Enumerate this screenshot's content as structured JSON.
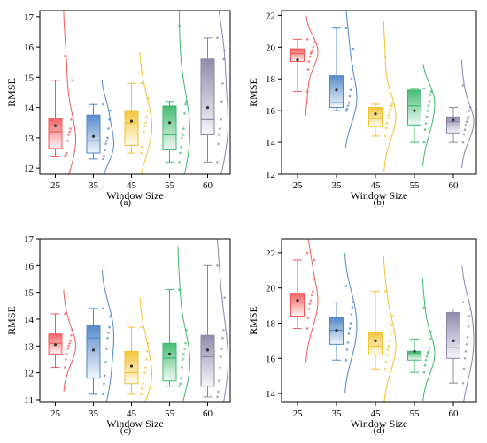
{
  "figure": {
    "colors": [
      "#f05a5a",
      "#4f86c6",
      "#f2c230",
      "#3cb86c",
      "#8c85a8"
    ]
  },
  "chart_data": [
    {
      "panel": "(a)",
      "type": "box",
      "xlabel": "Window Size",
      "ylabel": "RMSE",
      "categories": [
        "25",
        "35",
        "45",
        "55",
        "60"
      ],
      "ylim": [
        11.8,
        17.2
      ],
      "yticks": [
        12,
        13,
        14,
        15,
        16,
        17
      ],
      "boxes": [
        {
          "min": 12.4,
          "q1": 12.65,
          "median": 13.2,
          "q3": 13.65,
          "max": 14.9,
          "mean": 13.4
        },
        {
          "min": 12.3,
          "q1": 12.5,
          "median": 12.9,
          "q3": 13.75,
          "max": 14.1,
          "mean": 13.05
        },
        {
          "min": 12.5,
          "q1": 12.75,
          "median": 13.5,
          "q3": 13.9,
          "max": 14.8,
          "mean": 13.55
        },
        {
          "min": 12.2,
          "q1": 12.6,
          "median": 13.1,
          "q3": 14.05,
          "max": 14.2,
          "mean": 13.5
        },
        {
          "min": 12.2,
          "q1": 13.1,
          "median": 13.6,
          "q3": 15.6,
          "max": 16.3,
          "mean": 14.0
        }
      ],
      "points": [
        [
          12.4,
          12.45,
          12.5,
          12.9,
          13.1,
          13.2,
          13.3,
          13.6,
          14.9,
          15.7
        ],
        [
          12.3,
          12.4,
          12.6,
          12.8,
          12.9,
          13.0,
          13.3,
          13.6,
          13.9,
          14.1
        ],
        [
          12.5,
          12.7,
          12.9,
          13.2,
          13.4,
          13.5,
          13.7,
          13.9,
          14.3,
          14.8
        ],
        [
          12.2,
          12.5,
          12.7,
          13.0,
          13.1,
          13.3,
          13.8,
          14.1,
          14.2,
          16.7
        ],
        [
          12.2,
          12.8,
          13.1,
          13.3,
          13.6,
          14.2,
          14.8,
          15.6,
          15.9,
          16.3
        ]
      ]
    },
    {
      "panel": "(b)",
      "type": "box",
      "xlabel": "Window Size",
      "ylabel": "RMSE",
      "categories": [
        "25",
        "35",
        "45",
        "55",
        "60"
      ],
      "ylim": [
        12,
        22.3
      ],
      "yticks": [
        12,
        14,
        16,
        18,
        20,
        22
      ],
      "boxes": [
        {
          "min": 17.2,
          "q1": 19.1,
          "median": 19.6,
          "q3": 19.9,
          "max": 20.5,
          "mean": 19.2
        },
        {
          "min": 16.0,
          "q1": 16.2,
          "median": 16.5,
          "q3": 18.2,
          "max": 21.2,
          "mean": 17.3
        },
        {
          "min": 14.4,
          "q1": 15.0,
          "median": 15.5,
          "q3": 16.2,
          "max": 16.4,
          "mean": 15.8
        },
        {
          "min": 14.0,
          "q1": 15.1,
          "median": 16.3,
          "q3": 17.3,
          "max": 17.4,
          "mean": 16.0
        },
        {
          "min": 14.0,
          "q1": 14.6,
          "median": 15.3,
          "q3": 15.6,
          "max": 16.2,
          "mean": 15.4
        }
      ],
      "points": [
        [
          17.2,
          18.6,
          19.1,
          19.4,
          19.6,
          19.7,
          19.8,
          20.0,
          20.3,
          20.5
        ],
        [
          16.0,
          16.1,
          16.3,
          16.5,
          16.9,
          17.3,
          18.0,
          18.8,
          19.9,
          21.2
        ],
        [
          14.4,
          14.9,
          15.2,
          15.5,
          15.7,
          15.9,
          16.1,
          16.3,
          16.4,
          19.4
        ],
        [
          14.0,
          14.8,
          15.2,
          15.6,
          16.0,
          16.3,
          16.6,
          17.0,
          17.2,
          17.4
        ],
        [
          14.0,
          14.5,
          14.8,
          15.1,
          15.3,
          15.5,
          15.6,
          16.0,
          16.2,
          17.6
        ]
      ]
    },
    {
      "panel": "(c)",
      "type": "box",
      "xlabel": "Window Size",
      "ylabel": "RMSE",
      "categories": [
        "25",
        "35",
        "45",
        "55",
        "60"
      ],
      "ylim": [
        10.9,
        17.0
      ],
      "yticks": [
        11,
        12,
        13,
        14,
        15,
        16,
        17
      ],
      "boxes": [
        {
          "min": 12.2,
          "q1": 12.7,
          "median": 13.1,
          "q3": 13.45,
          "max": 14.2,
          "mean": 13.05
        },
        {
          "min": 11.2,
          "q1": 11.8,
          "median": 13.3,
          "q3": 13.75,
          "max": 14.4,
          "mean": 12.85
        },
        {
          "min": 11.2,
          "q1": 11.6,
          "median": 12.0,
          "q3": 12.8,
          "max": 13.7,
          "mean": 12.25
        },
        {
          "min": 11.5,
          "q1": 11.7,
          "median": 12.55,
          "q3": 13.1,
          "max": 15.1,
          "mean": 12.7
        },
        {
          "min": 11.1,
          "q1": 11.5,
          "median": 12.6,
          "q3": 13.4,
          "max": 16.0,
          "mean": 12.85
        }
      ],
      "points": [
        [
          12.2,
          12.5,
          12.7,
          12.9,
          13.0,
          13.1,
          13.2,
          13.4,
          13.6,
          14.2
        ],
        [
          11.2,
          11.6,
          11.9,
          12.4,
          12.9,
          13.3,
          13.5,
          13.7,
          14.1,
          14.4
        ],
        [
          11.2,
          11.4,
          11.6,
          11.8,
          12.0,
          12.2,
          12.5,
          12.8,
          13.1,
          13.7
        ],
        [
          11.5,
          11.6,
          11.8,
          12.2,
          12.5,
          12.7,
          12.9,
          13.1,
          13.6,
          15.1
        ],
        [
          11.1,
          11.3,
          11.7,
          12.2,
          12.6,
          12.9,
          13.3,
          13.6,
          14.8,
          16.0
        ]
      ]
    },
    {
      "panel": "(d)",
      "type": "box",
      "xlabel": "Window Size",
      "ylabel": "RMSE",
      "categories": [
        "25",
        "35",
        "45",
        "55",
        "60"
      ],
      "ylim": [
        13.5,
        22.8
      ],
      "yticks": [
        14,
        16,
        18,
        20,
        22
      ],
      "boxes": [
        {
          "min": 17.7,
          "q1": 18.4,
          "median": 19.2,
          "q3": 19.7,
          "max": 21.6,
          "mean": 19.3
        },
        {
          "min": 15.9,
          "q1": 16.8,
          "median": 17.6,
          "q3": 18.3,
          "max": 19.2,
          "mean": 17.6
        },
        {
          "min": 15.4,
          "q1": 16.2,
          "median": 16.7,
          "q3": 17.5,
          "max": 19.8,
          "mean": 17.0
        },
        {
          "min": 15.2,
          "q1": 15.9,
          "median": 16.3,
          "q3": 16.4,
          "max": 17.1,
          "mean": 16.4
        },
        {
          "min": 14.6,
          "q1": 16.0,
          "median": 16.6,
          "q3": 18.6,
          "max": 18.8,
          "mean": 17.0
        }
      ],
      "points": [
        [
          17.7,
          18.3,
          18.8,
          19.1,
          19.3,
          19.6,
          19.8,
          20.5,
          21.6,
          22.0
        ],
        [
          15.9,
          16.5,
          16.9,
          17.4,
          17.7,
          18.0,
          18.5,
          18.9,
          19.2,
          20.1
        ],
        [
          15.4,
          15.8,
          16.2,
          16.5,
          16.7,
          17.0,
          17.4,
          17.9,
          18.4,
          19.8
        ],
        [
          15.2,
          15.6,
          15.9,
          16.1,
          16.3,
          16.4,
          16.6,
          17.1,
          17.5,
          18.9
        ],
        [
          14.6,
          15.4,
          16.0,
          16.4,
          16.8,
          17.2,
          17.8,
          18.4,
          18.8,
          19.2
        ]
      ]
    }
  ]
}
